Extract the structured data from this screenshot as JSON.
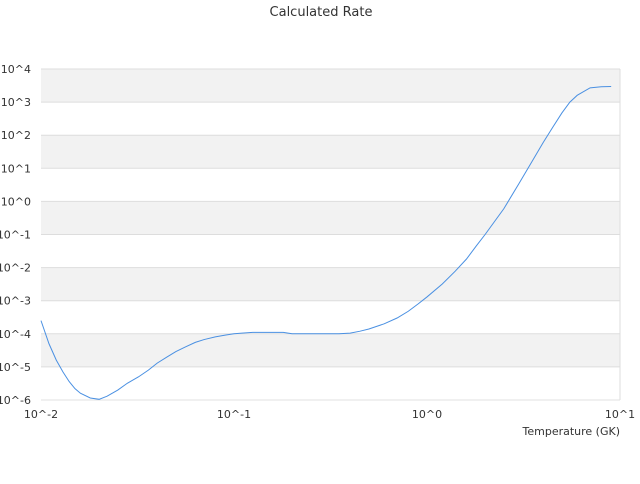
{
  "chart_data": {
    "type": "line",
    "title": "Calculated Rate",
    "xlabel": "Temperature (GK)",
    "ylabel": "",
    "xscale": "log",
    "yscale": "log",
    "xlim": [
      0.01,
      10
    ],
    "ylim": [
      1e-06,
      10000.0
    ],
    "grid": "horizontal alternating bands",
    "legend": "none",
    "x_ticks": [
      {
        "value": 0.01,
        "label": "10^-2"
      },
      {
        "value": 0.1,
        "label": "10^-1"
      },
      {
        "value": 1,
        "label": "10^0"
      },
      {
        "value": 10,
        "label": "10^1"
      }
    ],
    "y_ticks": [
      {
        "value": 1e-06,
        "label": "10^-6"
      },
      {
        "value": 1e-05,
        "label": "10^-5"
      },
      {
        "value": 0.0001,
        "label": "10^-4"
      },
      {
        "value": 0.001,
        "label": "10^-3"
      },
      {
        "value": 0.01,
        "label": "10^-2"
      },
      {
        "value": 0.1,
        "label": "10^-1"
      },
      {
        "value": 1,
        "label": "10^0"
      },
      {
        "value": 10,
        "label": "10^1"
      },
      {
        "value": 100,
        "label": "10^2"
      },
      {
        "value": 1000,
        "label": "10^3"
      },
      {
        "value": 10000,
        "label": "10^4"
      }
    ],
    "series": [
      {
        "color": "#4a90e2",
        "x": [
          0.01,
          0.011,
          0.012,
          0.013,
          0.014,
          0.015,
          0.016,
          0.018,
          0.02,
          0.022,
          0.025,
          0.028,
          0.032,
          0.036,
          0.04,
          0.045,
          0.05,
          0.056,
          0.063,
          0.07,
          0.08,
          0.09,
          0.1,
          0.11,
          0.125,
          0.14,
          0.16,
          0.18,
          0.2,
          0.25,
          0.3,
          0.35,
          0.4,
          0.45,
          0.5,
          0.6,
          0.7,
          0.8,
          0.9,
          1.0,
          1.2,
          1.4,
          1.6,
          1.8,
          2.0,
          2.5,
          3.0,
          3.5,
          4.0,
          4.5,
          5.0,
          5.5,
          6.0,
          7.0,
          8.0,
          9.0
        ],
        "y": [
          0.00025,
          5e-05,
          1.6e-05,
          7e-06,
          3.6e-06,
          2.2e-06,
          1.6e-06,
          1.15e-06,
          1.05e-06,
          1.3e-06,
          2e-06,
          3.2e-06,
          5e-06,
          8e-06,
          1.3e-05,
          2e-05,
          2.9e-05,
          4e-05,
          5.5e-05,
          6.7e-05,
          8.1e-05,
          9.1e-05,
          0.0001,
          0.000105,
          0.00011,
          0.00011,
          0.00011,
          0.00011,
          0.0001,
          0.0001,
          0.0001,
          0.0001,
          0.000105,
          0.00012,
          0.00014,
          0.0002,
          0.0003,
          0.00048,
          0.0008,
          0.0013,
          0.0032,
          0.0078,
          0.018,
          0.045,
          0.1,
          0.6,
          3.5,
          16,
          60,
          180,
          470,
          1000,
          1600,
          2700,
          2900,
          2950
        ]
      }
    ]
  }
}
